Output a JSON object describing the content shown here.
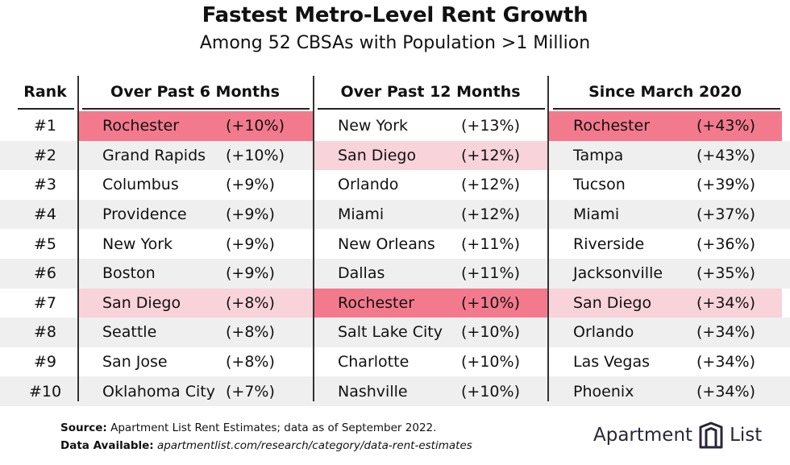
{
  "title": "Fastest Metro-Level Rent Growth",
  "subtitle": "Among 52 CBSAs with Population >1 Million",
  "headers": {
    "rank": "Rank",
    "col1": "Over Past 6 Months",
    "col2": "Over Past 12 Months",
    "col3": "Since March 2020"
  },
  "colors": {
    "strong_highlight": "#f37a8d",
    "light_highlight": "#f9d3da",
    "row_stripe": "#efefef"
  },
  "rows": [
    {
      "rank": "#1",
      "c1": {
        "city": "Rochester",
        "pct": "(+10%)",
        "hl": "strong"
      },
      "c2": {
        "city": "New York",
        "pct": "(+13%)",
        "hl": ""
      },
      "c3": {
        "city": "Rochester",
        "pct": "(+43%)",
        "hl": "strong"
      }
    },
    {
      "rank": "#2",
      "c1": {
        "city": "Grand Rapids",
        "pct": "(+10%)",
        "hl": ""
      },
      "c2": {
        "city": "San Diego",
        "pct": "(+12%)",
        "hl": "light"
      },
      "c3": {
        "city": "Tampa",
        "pct": "(+43%)",
        "hl": ""
      }
    },
    {
      "rank": "#3",
      "c1": {
        "city": "Columbus",
        "pct": "(+9%)",
        "hl": ""
      },
      "c2": {
        "city": "Orlando",
        "pct": "(+12%)",
        "hl": ""
      },
      "c3": {
        "city": "Tucson",
        "pct": "(+39%)",
        "hl": ""
      }
    },
    {
      "rank": "#4",
      "c1": {
        "city": "Providence",
        "pct": "(+9%)",
        "hl": ""
      },
      "c2": {
        "city": "Miami",
        "pct": "(+12%)",
        "hl": ""
      },
      "c3": {
        "city": "Miami",
        "pct": "(+37%)",
        "hl": ""
      }
    },
    {
      "rank": "#5",
      "c1": {
        "city": "New York",
        "pct": "(+9%)",
        "hl": ""
      },
      "c2": {
        "city": "New Orleans",
        "pct": "(+11%)",
        "hl": ""
      },
      "c3": {
        "city": "Riverside",
        "pct": "(+36%)",
        "hl": ""
      }
    },
    {
      "rank": "#6",
      "c1": {
        "city": "Boston",
        "pct": "(+9%)",
        "hl": ""
      },
      "c2": {
        "city": "Dallas",
        "pct": "(+11%)",
        "hl": ""
      },
      "c3": {
        "city": "Jacksonville",
        "pct": "(+35%)",
        "hl": ""
      }
    },
    {
      "rank": "#7",
      "c1": {
        "city": "San Diego",
        "pct": "(+8%)",
        "hl": "light"
      },
      "c2": {
        "city": "Rochester",
        "pct": "(+10%)",
        "hl": "strong"
      },
      "c3": {
        "city": "San Diego",
        "pct": "(+34%)",
        "hl": "light"
      }
    },
    {
      "rank": "#8",
      "c1": {
        "city": "Seattle",
        "pct": "(+8%)",
        "hl": ""
      },
      "c2": {
        "city": "Salt Lake City",
        "pct": "(+10%)",
        "hl": ""
      },
      "c3": {
        "city": "Orlando",
        "pct": "(+34%)",
        "hl": ""
      }
    },
    {
      "rank": "#9",
      "c1": {
        "city": "San Jose",
        "pct": "(+8%)",
        "hl": ""
      },
      "c2": {
        "city": "Charlotte",
        "pct": "(+10%)",
        "hl": ""
      },
      "c3": {
        "city": "Las Vegas",
        "pct": "(+34%)",
        "hl": ""
      }
    },
    {
      "rank": "#10",
      "c1": {
        "city": "Oklahoma City",
        "pct": "(+7%)",
        "hl": ""
      },
      "c2": {
        "city": "Nashville",
        "pct": "(+10%)",
        "hl": ""
      },
      "c3": {
        "city": "Phoenix",
        "pct": "(+34%)",
        "hl": ""
      }
    }
  ],
  "footer": {
    "source_label": "Source:",
    "source_text": " Apartment List Rent Estimates; data as of September 2022.",
    "avail_label": "Data Available:",
    "avail_text": "apartmentlist.com/research/category/data-rent-estimates"
  },
  "logo": {
    "word1": "Apartment",
    "word2": "List",
    "icon": "apartment-list-logo-icon"
  }
}
